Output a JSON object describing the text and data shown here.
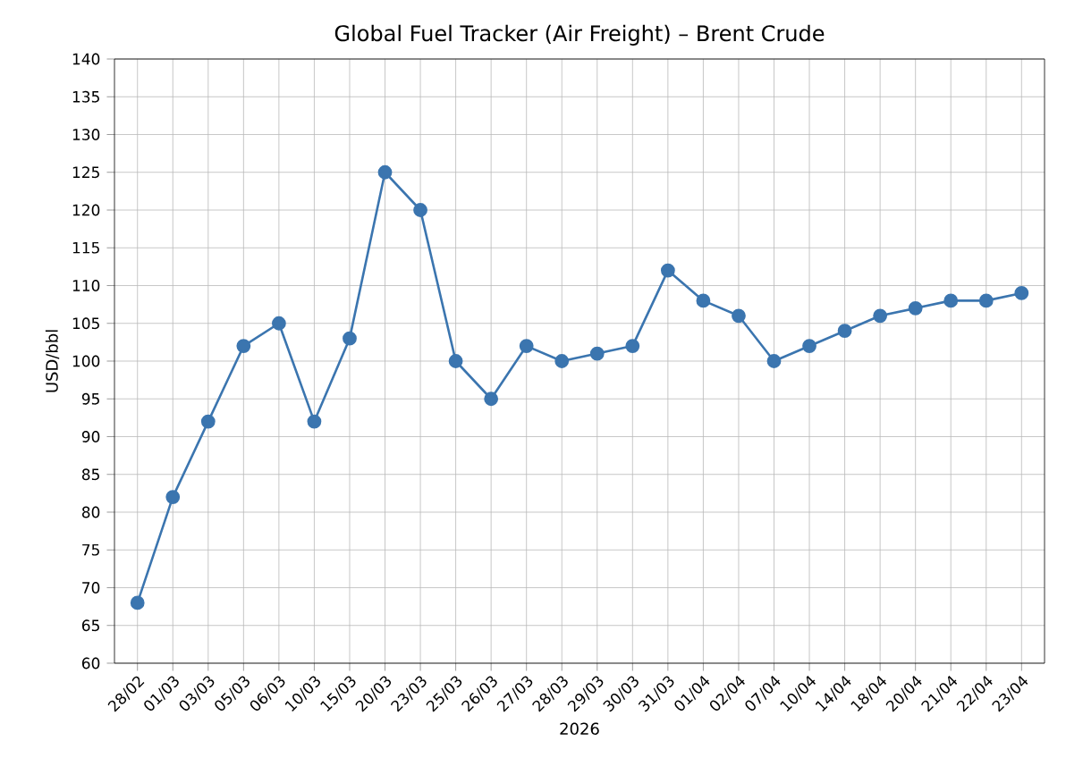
{
  "chart_data": {
    "type": "line",
    "title": "Global Fuel Tracker (Air Freight) – Brent Crude",
    "xlabel": "2026",
    "ylabel": "USD/bbl",
    "categories": [
      "28/02",
      "01/03",
      "03/03",
      "05/03",
      "06/03",
      "10/03",
      "15/03",
      "20/03",
      "23/03",
      "25/03",
      "26/03",
      "27/03",
      "28/03",
      "29/03",
      "30/03",
      "31/03",
      "01/04",
      "02/04",
      "07/04",
      "10/04",
      "14/04",
      "18/04",
      "20/04",
      "21/04",
      "22/04",
      "23/04"
    ],
    "values": [
      68,
      82,
      92,
      102,
      105,
      92,
      103,
      125,
      120,
      100,
      95,
      102,
      100,
      101,
      102,
      112,
      108,
      106,
      100,
      102,
      104,
      106,
      107,
      108,
      108,
      109
    ],
    "color": "#3b75af",
    "marker": "circle",
    "line_style": "solid",
    "grid": true,
    "ylim": [
      60,
      140
    ],
    "yticks": [
      60,
      65,
      70,
      75,
      80,
      85,
      90,
      95,
      100,
      105,
      110,
      115,
      120,
      125,
      130,
      135,
      140
    ]
  }
}
